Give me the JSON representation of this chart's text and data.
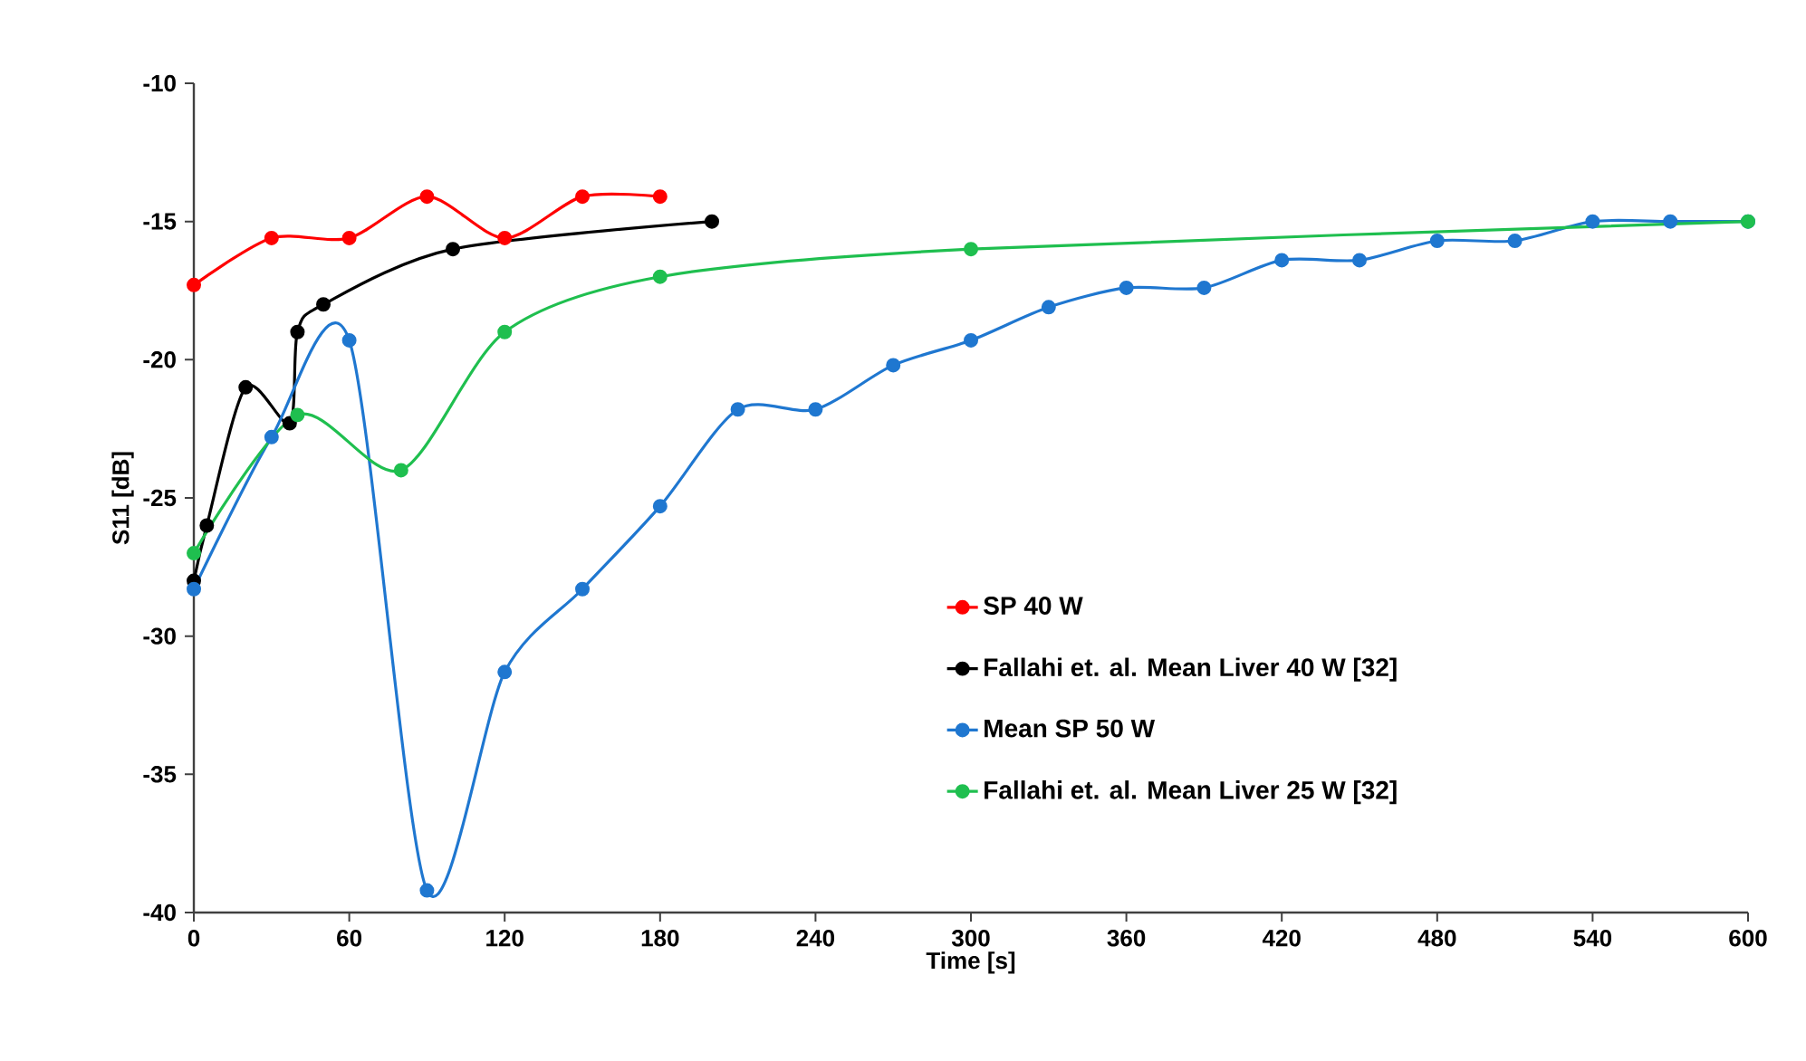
{
  "chart_data": {
    "type": "line",
    "xlabel": "Time [s]",
    "ylabel": "S11 [dB]",
    "xlim": [
      0,
      600
    ],
    "ylim": [
      -40,
      -10
    ],
    "xticks": [
      0,
      60,
      120,
      180,
      240,
      300,
      360,
      420,
      480,
      540,
      600
    ],
    "yticks": [
      -40,
      -35,
      -30,
      -25,
      -20,
      -15,
      -10
    ],
    "marker": "circle",
    "legend": "bottom right",
    "series": [
      {
        "name": "SP 40 W",
        "color": "#ff0000",
        "x": [
          0,
          30,
          60,
          90,
          120,
          150,
          180
        ],
        "values": [
          -17.3,
          -15.6,
          -15.6,
          -14.1,
          -15.6,
          -14.1,
          -14.1
        ]
      },
      {
        "name": "Fallahi et. al. Mean Liver 40 W [32]",
        "color": "#000000",
        "x": [
          0,
          5,
          20,
          37,
          40,
          50,
          100,
          200
        ],
        "values": [
          -28,
          -26,
          -21,
          -22.3,
          -19,
          -18,
          -16,
          -15
        ]
      },
      {
        "name": "Mean SP 50 W",
        "color": "#1f77d0",
        "x": [
          0,
          30,
          60,
          90,
          120,
          150,
          180,
          210,
          240,
          270,
          300,
          330,
          360,
          390,
          420,
          450,
          480,
          510,
          540,
          570,
          600
        ],
        "values": [
          -28.3,
          -22.8,
          -19.3,
          -39.2,
          -31.3,
          -28.3,
          -25.3,
          -21.8,
          -21.8,
          -20.2,
          -19.3,
          -18.1,
          -17.4,
          -17.4,
          -16.4,
          -16.4,
          -15.7,
          -15.7,
          -15,
          -15,
          -15
        ]
      },
      {
        "name": "Fallahi et. al. Mean Liver 25 W [32]",
        "color": "#1fbf4f",
        "x": [
          0,
          40,
          80,
          120,
          180,
          300,
          600
        ],
        "values": [
          -27,
          -22,
          -24,
          -19,
          -17,
          -16,
          -15
        ]
      }
    ]
  }
}
